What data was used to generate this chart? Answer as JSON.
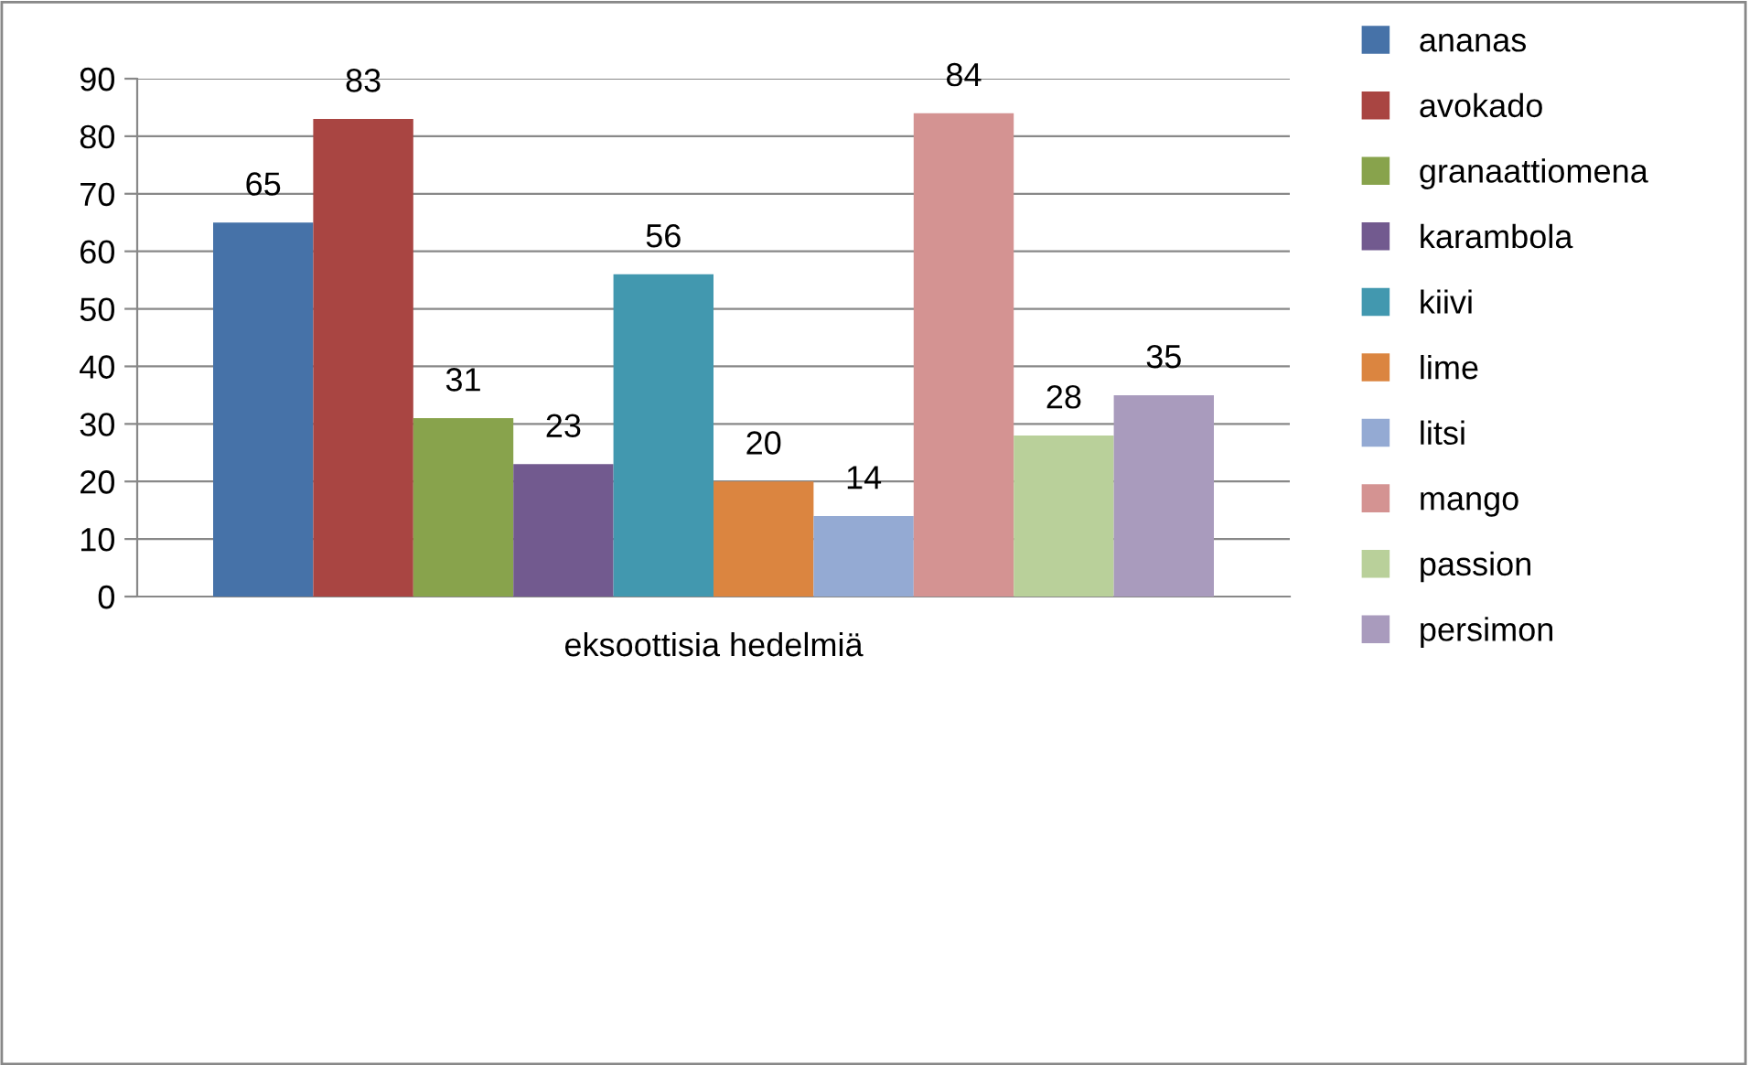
{
  "chart_data": {
    "type": "bar",
    "categories": [
      "eksoottisia hedelmiä"
    ],
    "series": [
      {
        "name": "ananas",
        "color": "#4672a8",
        "values": [
          65
        ]
      },
      {
        "name": "avokado",
        "color": "#a94542",
        "values": [
          83
        ]
      },
      {
        "name": "granaattiomena",
        "color": "#88a34c",
        "values": [
          31
        ]
      },
      {
        "name": "karambola",
        "color": "#725a8f",
        "values": [
          23
        ]
      },
      {
        "name": "kiivi",
        "color": "#4298af",
        "values": [
          56
        ]
      },
      {
        "name": "lime",
        "color": "#db8540",
        "values": [
          20
        ]
      },
      {
        "name": "litsi",
        "color": "#94aad3",
        "values": [
          14
        ]
      },
      {
        "name": "mango",
        "color": "#d49392",
        "values": [
          84
        ]
      },
      {
        "name": "passion",
        "color": "#b9d09a",
        "values": [
          28
        ]
      },
      {
        "name": "persimon",
        "color": "#a99bbd",
        "values": [
          35
        ]
      }
    ],
    "ylim": [
      0,
      90
    ],
    "yticks": [
      0,
      10,
      20,
      30,
      40,
      50,
      60,
      70,
      80,
      90
    ],
    "grid": "y",
    "legend": "right",
    "data_labels": true
  }
}
